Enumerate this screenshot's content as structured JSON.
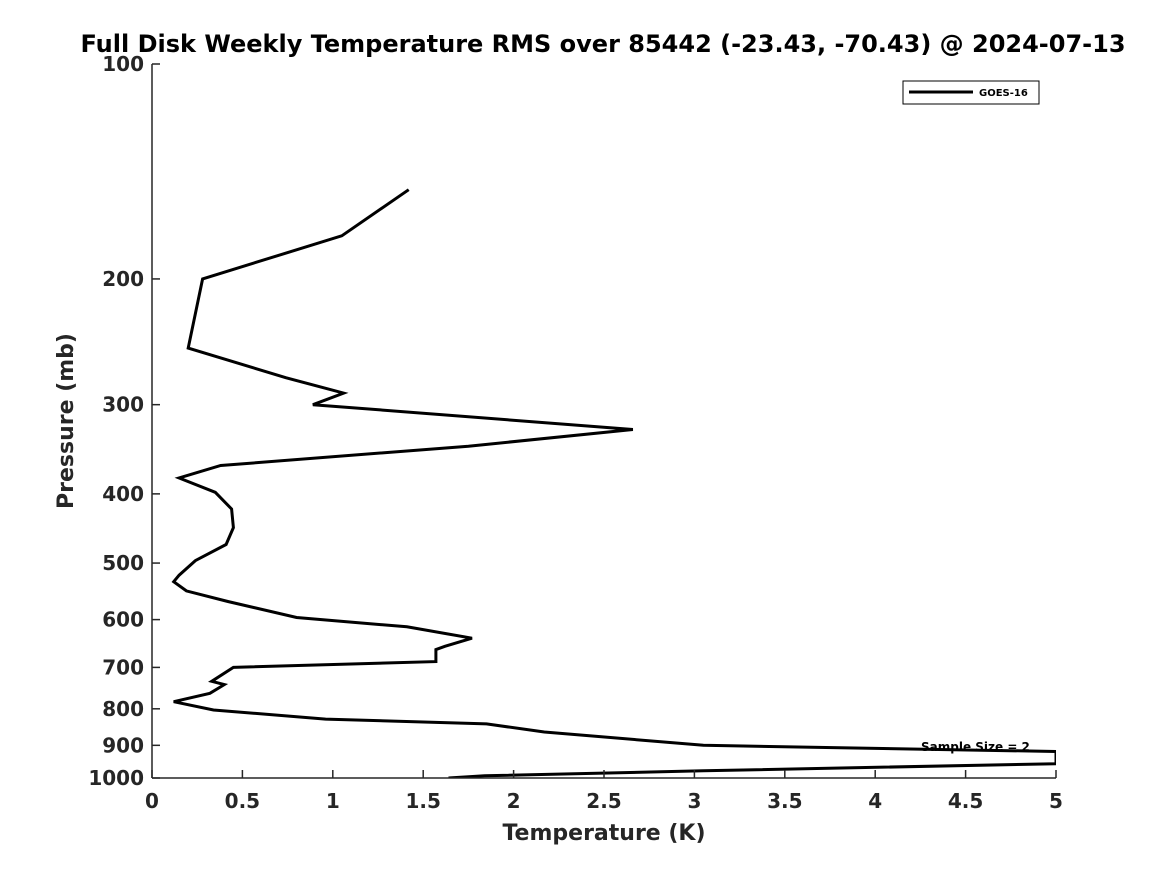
{
  "chart_data": {
    "type": "line",
    "title": "Full Disk Weekly Temperature RMS over 85442 (-23.43, -70.43) @ 2024-07-13",
    "xlabel": "Temperature (K)",
    "ylabel": "Pressure (mb)",
    "xlim": [
      0,
      5
    ],
    "ylim": [
      100,
      1000
    ],
    "y_scale": "log",
    "y_reversed": true,
    "x_ticks": [
      "0",
      "0.5",
      "1",
      "1.5",
      "2",
      "2.5",
      "3",
      "3.5",
      "4",
      "4.5",
      "5"
    ],
    "y_ticks": [
      "100",
      "200",
      "300",
      "400",
      "500",
      "600",
      "700",
      "800",
      "900",
      "1000"
    ],
    "grid": false,
    "legend_position": "top-right",
    "annotation": "Sample Size = 2",
    "series": [
      {
        "name": "GOES-16",
        "color": "#000000",
        "points": [
          [
            1.42,
            150
          ],
          [
            1.05,
            174
          ],
          [
            0.28,
            200
          ],
          [
            0.2,
            250
          ],
          [
            0.74,
            275
          ],
          [
            1.06,
            289
          ],
          [
            0.89,
            300
          ],
          [
            2.66,
            325
          ],
          [
            1.75,
            343
          ],
          [
            0.38,
            365
          ],
          [
            0.15,
            380
          ],
          [
            0.35,
            398
          ],
          [
            0.44,
            420
          ],
          [
            0.45,
            446
          ],
          [
            0.41,
            471
          ],
          [
            0.24,
            496
          ],
          [
            0.15,
            520
          ],
          [
            0.12,
            531
          ],
          [
            0.19,
            547
          ],
          [
            0.42,
            566
          ],
          [
            0.8,
            596
          ],
          [
            1.41,
            614
          ],
          [
            1.77,
            637
          ],
          [
            1.62,
            654
          ],
          [
            1.57,
            661
          ],
          [
            1.57,
            687
          ],
          [
            0.45,
            700
          ],
          [
            0.33,
            732
          ],
          [
            0.4,
            740
          ],
          [
            0.32,
            761
          ],
          [
            0.12,
            782
          ],
          [
            0.34,
            803
          ],
          [
            0.96,
            827
          ],
          [
            1.85,
            840
          ],
          [
            2.17,
            862
          ],
          [
            3.05,
            900
          ],
          [
            5.0,
            918
          ],
          [
            5.0,
            955
          ],
          [
            3.05,
            977
          ],
          [
            1.84,
            993
          ],
          [
            1.64,
            1000
          ]
        ]
      }
    ]
  }
}
